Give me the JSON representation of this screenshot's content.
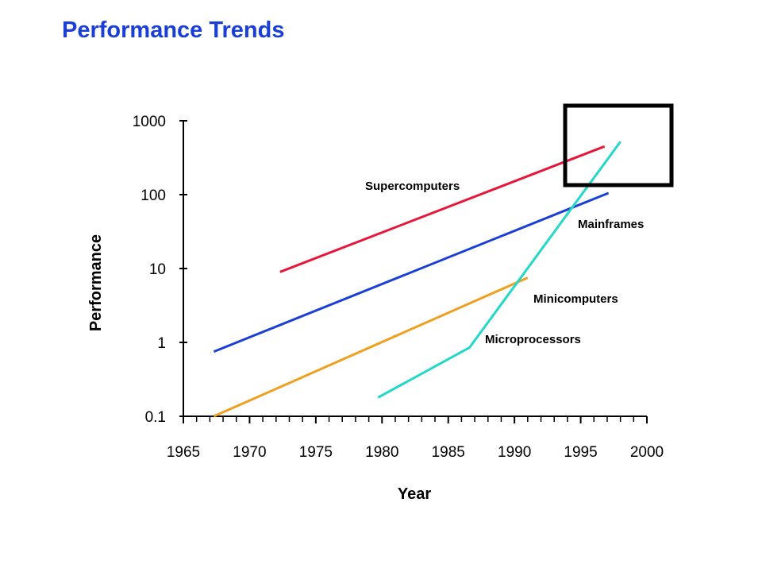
{
  "title": "Performance Trends",
  "chart_data": {
    "type": "line",
    "title": "Performance Trends",
    "xlabel": "Year",
    "ylabel": "Performance",
    "x_ticks": [
      1965,
      1970,
      1975,
      1980,
      1985,
      1990,
      1995,
      2000
    ],
    "y_ticks": [
      0.1,
      1,
      10,
      100,
      1000
    ],
    "y_tick_labels": [
      "0.1",
      "1",
      "10",
      "100",
      "1000"
    ],
    "xlim": [
      1965,
      2000
    ],
    "ylim": [
      0.1,
      1000
    ],
    "y_scale": "log",
    "grid": false,
    "legend": "none (series labeled directly on chart)",
    "series": [
      {
        "name": "Supercomputers",
        "color": "#e8173a",
        "points": [
          [
            1972.3,
            9
          ],
          [
            1996.8,
            450
          ]
        ]
      },
      {
        "name": "Mainframes",
        "color": "#1a3fd6",
        "points": [
          [
            1967.3,
            0.75
          ],
          [
            1997.1,
            105
          ]
        ]
      },
      {
        "name": "Minicomputers",
        "color": "#f0a020",
        "points": [
          [
            1967.3,
            0.1
          ],
          [
            1991.0,
            7.5
          ]
        ]
      },
      {
        "name": "Microprocessors",
        "color": "#22d8c8",
        "points": [
          [
            1979.7,
            0.18
          ],
          [
            1986.6,
            0.85
          ],
          [
            1998.0,
            520
          ]
        ]
      }
    ],
    "annotations": [
      {
        "type": "highlight-box",
        "note": "emphasis rectangle around recent top-right region",
        "color": "#000000"
      }
    ]
  }
}
